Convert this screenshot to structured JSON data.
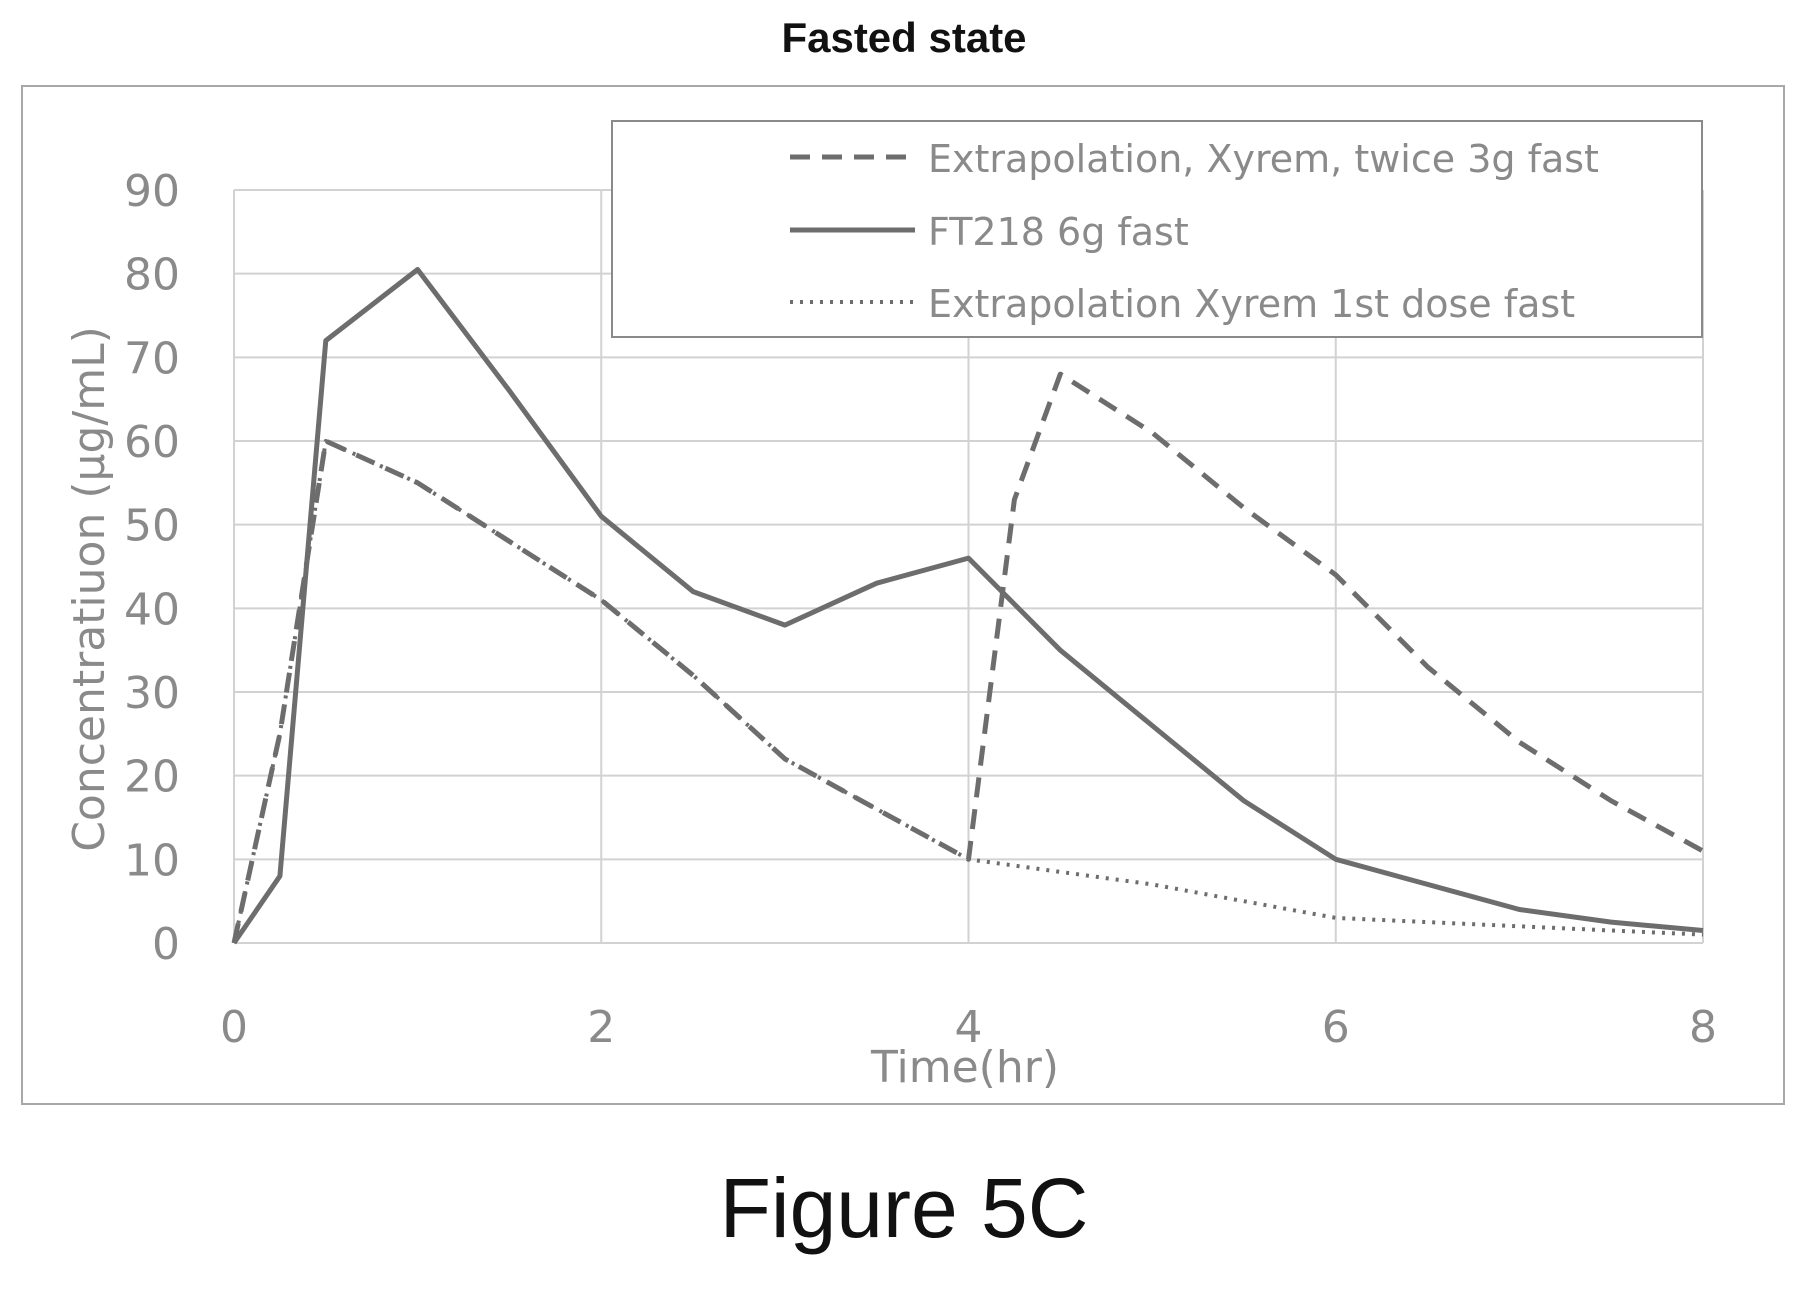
{
  "chart_data": {
    "type": "line",
    "title": "Fasted state",
    "xlabel": "Time(hr)",
    "ylabel": "Concentratiuon (µg/mL)",
    "xlim": [
      0,
      8
    ],
    "ylim": [
      0,
      90
    ],
    "xticks": [
      0,
      2,
      4,
      6,
      8
    ],
    "yticks": [
      0,
      10,
      20,
      30,
      40,
      50,
      60,
      70,
      80,
      90
    ],
    "grid": true,
    "legend_position": "top-right",
    "series": [
      {
        "name": "Extrapolation, Xyrem, twice 3g fast",
        "style": "dashed",
        "x": [
          0,
          0.25,
          0.5,
          1,
          1.5,
          2,
          2.5,
          3,
          3.5,
          4,
          4.25,
          4.5,
          5,
          5.5,
          6,
          6.5,
          7,
          7.5,
          8
        ],
        "y": [
          0,
          25,
          60,
          55,
          48,
          41,
          32,
          22,
          16,
          10,
          53,
          68,
          61,
          52,
          44,
          33,
          24,
          17,
          11
        ]
      },
      {
        "name": "FT218 6g fast",
        "style": "solid",
        "x": [
          0,
          0.25,
          0.5,
          1,
          1.5,
          2,
          2.5,
          3,
          3.5,
          4,
          4.5,
          5,
          5.5,
          6,
          6.5,
          7,
          7.5,
          8
        ],
        "y": [
          0,
          8,
          72,
          80.5,
          66,
          51,
          42,
          38,
          43,
          46,
          35,
          26,
          17,
          10,
          7,
          4,
          2.5,
          1.5
        ]
      },
      {
        "name": "Extrapolation Xyrem 1st dose fast",
        "style": "dotted",
        "x": [
          0,
          0.25,
          0.5,
          1,
          1.5,
          2,
          2.5,
          3,
          3.5,
          4,
          4.5,
          5,
          5.5,
          6,
          6.5,
          7,
          7.5,
          8
        ],
        "y": [
          0,
          25,
          60,
          55,
          48,
          41,
          32,
          22,
          16,
          10,
          8.5,
          7,
          5,
          3,
          2.5,
          2,
          1.5,
          1
        ]
      }
    ],
    "colors": {
      "line": "#6d6d6d",
      "grid": "#d2d2d2",
      "text": "#8a8a8a",
      "frame": "#a8a8a8"
    }
  },
  "figure_label": "Figure 5C"
}
